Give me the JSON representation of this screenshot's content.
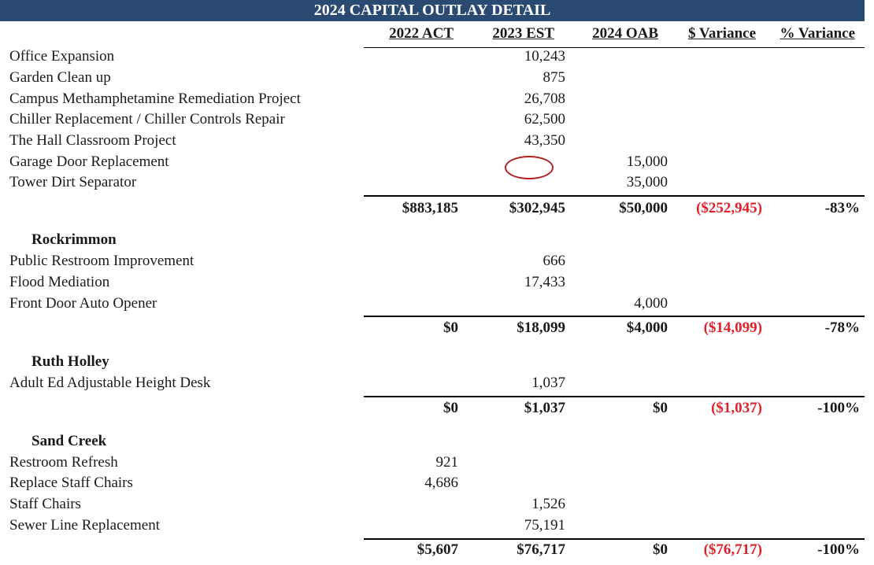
{
  "title": "2024 CAPITAL OUTLAY DETAIL",
  "columns": [
    "2022 ACT",
    "2023 EST",
    "2024 OAB",
    "$ Variance",
    "% Variance"
  ],
  "colors": {
    "banner": "#2b4a72",
    "negative": "#e0202a",
    "annotation_circle": "#b32020"
  },
  "block1": {
    "rows": [
      {
        "label": "Office Expansion",
        "v2023": "10,243"
      },
      {
        "label": "Garden Clean up",
        "v2023": "875"
      },
      {
        "label": "Campus Methamphetamine Remediation Project",
        "v2023": "26,708"
      },
      {
        "label": "Chiller Replacement / Chiller Controls Repair",
        "v2023": "62,500"
      },
      {
        "label": "The Hall Classroom Project",
        "v2023": "43,350"
      },
      {
        "label": "Garage Door Replacement",
        "v2024": "15,000"
      },
      {
        "label": "Tower Dirt Separator",
        "v2024": "35,000"
      }
    ],
    "total": {
      "v2022": "$883,185",
      "v2023": "$302,945",
      "v2024": "$50,000",
      "dvar": "($252,945)",
      "pvar": "-83%"
    }
  },
  "rockrimmon": {
    "name": "Rockrimmon",
    "rows": [
      {
        "label": "Public Restroom Improvement",
        "v2023": "666"
      },
      {
        "label": "Flood Mediation",
        "v2023": "17,433"
      },
      {
        "label": "Front Door Auto Opener",
        "v2024": "4,000"
      }
    ],
    "total": {
      "v2022": "$0",
      "v2023": "$18,099",
      "v2024": "$4,000",
      "dvar": "($14,099)",
      "pvar": "-78%"
    }
  },
  "ruth_holley": {
    "name": "Ruth Holley",
    "rows": [
      {
        "label": "Adult Ed Adjustable Height Desk",
        "v2023": "1,037"
      }
    ],
    "total": {
      "v2022": "$0",
      "v2023": "$1,037",
      "v2024": "$0",
      "dvar": "($1,037)",
      "pvar": "-100%"
    }
  },
  "sand_creek": {
    "name": "Sand Creek",
    "rows": [
      {
        "label": "Restroom Refresh",
        "v2022": "921"
      },
      {
        "label": "Replace Staff Chairs",
        "v2022": "4,686"
      },
      {
        "label": "Staff Chairs",
        "v2023": "1,526"
      },
      {
        "label": "Sewer Line Replacement",
        "v2023": "75,191"
      }
    ],
    "total": {
      "v2022": "$5,607",
      "v2023": "$76,717",
      "v2024": "$0",
      "dvar": "($76,717)",
      "pvar": "-100%"
    }
  }
}
